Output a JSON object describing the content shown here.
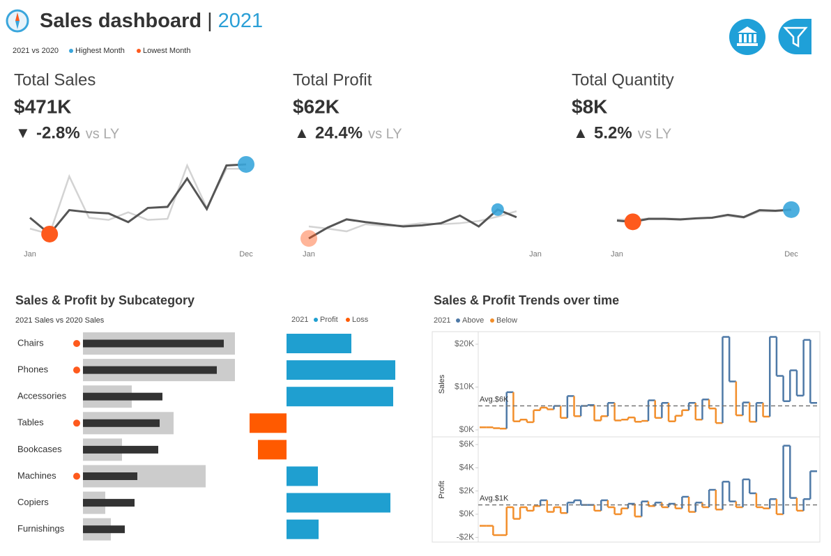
{
  "header": {
    "title": "Sales dashboard",
    "separator": "|",
    "year": "2021",
    "legend": {
      "prefix": "2021 vs  2020",
      "highest": "Highest Month",
      "lowest": "Lowest Month",
      "highest_color": "#3aa6dc",
      "lowest_color": "#fe5a1d"
    }
  },
  "chart_data": [
    {
      "type": "line",
      "title": "Total Sales",
      "kpi": "$471K",
      "arrow": "▼",
      "change": "-2.8%",
      "change_note": "vs LY",
      "categories": [
        "Jan",
        null,
        null,
        null,
        null,
        null,
        null,
        null,
        null,
        null,
        null,
        "Dec"
      ],
      "ylim": [
        0,
        80
      ],
      "series": [
        {
          "color": "#555555",
          "values": [
            24,
            9,
            31,
            29,
            28,
            20,
            33,
            34,
            60,
            32,
            72,
            73
          ]
        },
        {
          "color": "#d3d3d3",
          "values": [
            14,
            9,
            62,
            24,
            22,
            29,
            22,
            23,
            72,
            33,
            69,
            69
          ]
        }
      ]
    },
    {
      "type": "line",
      "title": "Total Profit",
      "kpi": "$62K",
      "arrow": "▲",
      "change": "24.4%",
      "change_note": "vs LY",
      "categories": [
        "Jan",
        null,
        null,
        null,
        null,
        null,
        null,
        null,
        null,
        null,
        null,
        null,
        "Jan"
      ],
      "ylim": [
        -2,
        14
      ],
      "series": [
        {
          "color": "#555555",
          "values": [
            -1,
            1,
            2.5,
            2,
            1.6,
            1.2,
            1.4,
            1.8,
            3.2,
            1.2,
            4.3,
            2.9,
            null
          ]
        },
        {
          "color": "#d3d3d3",
          "values": [
            1.2,
            0.8,
            0.3,
            1.6,
            1.3,
            1.4,
            1.8,
            1.6,
            1.8,
            2.2,
            3,
            4,
            null
          ]
        }
      ]
    },
    {
      "type": "line",
      "title": "Total Quantity",
      "kpi": "$8K",
      "arrow": "▲",
      "change": "5.2%",
      "change_note": "vs LY",
      "categories": [
        "Jan",
        null,
        null,
        null,
        null,
        null,
        null,
        null,
        null,
        null,
        null,
        "Dec"
      ],
      "ylim": [
        0,
        1500
      ],
      "series": [
        {
          "color": "#555555",
          "values": [
            400,
            380,
            430,
            430,
            420,
            440,
            450,
            500,
            460,
            580,
            570,
            590
          ]
        },
        {
          "color": "#d3d3d3",
          "values": [
            420,
            410,
            440,
            440,
            430,
            440,
            450,
            480,
            450,
            560,
            560,
            580
          ]
        }
      ]
    },
    {
      "type": "bar",
      "title": "Sales & Profit by Subcategory",
      "subtitle": "2021 Sales vs 2020 Sales",
      "categories": [
        "Chairs",
        "Phones",
        "Accessories",
        "Tables",
        "Bookcases",
        "Machines",
        "Copiers",
        "Furnishings"
      ],
      "xlim": [
        0,
        120
      ],
      "series": [
        {
          "color": "#333333",
          "values": [
            101,
            96,
            57,
            55,
            54,
            39,
            37,
            30
          ]
        },
        {
          "color": "#cccccc",
          "values": [
            109,
            109,
            35,
            65,
            28,
            88,
            16,
            20
          ]
        }
      ],
      "flag_color": "#fe5a1d"
    },
    {
      "type": "diverging-bar",
      "legend": {
        "prefix": "2021",
        "profit": "Profit",
        "loss": "Loss"
      },
      "profit_color": "#1f9fd0",
      "loss_color": "#ff5a00",
      "xlim": [
        -6,
        16
      ],
      "values": [
        9.3,
        15.6,
        15.3,
        -5.3,
        -4.1,
        4.5,
        14.9,
        4.6
      ]
    },
    {
      "type": "step",
      "title": "Sales & Profit Trends over time",
      "legend": {
        "prefix": "2021",
        "above": "Above",
        "below": "Below"
      },
      "ylabel": "Sales",
      "ylim": [
        -1.3,
        22.6
      ],
      "yticks": [
        {
          "value": 0,
          "label": "$0K"
        },
        {
          "value": 10,
          "label": "$10K"
        },
        {
          "value": 20,
          "label": "$20K"
        }
      ],
      "average": 5.6,
      "avg_label": "Avg.$6K",
      "above_color": "#4e79a7",
      "below_color": "#f28e2b",
      "values": [
        0.6,
        0.6,
        0.4,
        0.3,
        8.8,
        2.0,
        2.4,
        1.8,
        4.6,
        5.2,
        4.8,
        5.6,
        2.8,
        7.9,
        3.2,
        5.6,
        5.8,
        2.2,
        3.2,
        6.3,
        2.2,
        2.4,
        2.9,
        1.9,
        2.1,
        6.9,
        2.8,
        6.3,
        2.0,
        3.3,
        4.6,
        6.3,
        2.4,
        7.1,
        5.0,
        1.6,
        21.7,
        11.3,
        3.4,
        6.4,
        1.9,
        6.3,
        3.1,
        21.7,
        12.6,
        6.7,
        13.9,
        8.0,
        21.0,
        6.3
      ]
    },
    {
      "type": "step",
      "ylabel": "Profit",
      "ylim": [
        -2.4,
        6.6
      ],
      "yticks": [
        {
          "value": -2,
          "label": "-$2K"
        },
        {
          "value": 0,
          "label": "$0K"
        },
        {
          "value": 2,
          "label": "$2K"
        },
        {
          "value": 4,
          "label": "$4K"
        },
        {
          "value": 6,
          "label": "$6K"
        }
      ],
      "average": 0.8,
      "avg_label": "Avg.$1K",
      "above_color": "#4e79a7",
      "below_color": "#f28e2b",
      "values": [
        -1.0,
        -1.0,
        -1.8,
        -1.8,
        0.6,
        -0.4,
        0.6,
        0.3,
        0.7,
        1.2,
        0.2,
        0.6,
        0.1,
        1.0,
        1.2,
        0.8,
        0.8,
        0.3,
        1.2,
        0.6,
        0.0,
        0.5,
        0.9,
        -0.2,
        1.1,
        0.7,
        1.0,
        0.6,
        0.9,
        0.5,
        1.5,
        0.2,
        1.0,
        0.6,
        2.1,
        0.4,
        2.8,
        1.1,
        0.6,
        3.0,
        1.8,
        0.6,
        0.5,
        1.3,
        0.0,
        5.9,
        1.4,
        0.3,
        1.3,
        3.7
      ]
    }
  ]
}
